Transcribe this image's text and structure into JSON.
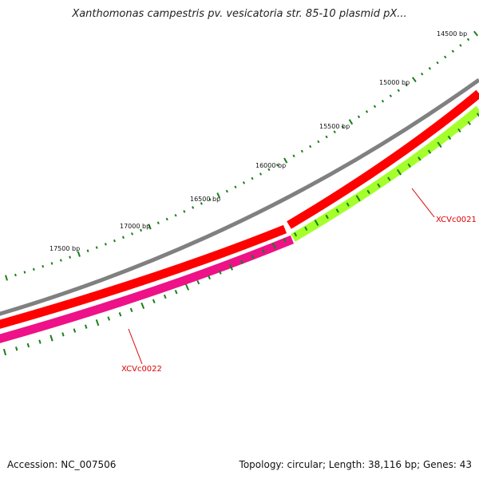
{
  "title": "Xanthomonas campestris pv. vesicatoria str. 85-10 plasmid pX...",
  "footer": {
    "accession": "Accession: NC_007506",
    "summary": "Topology: circular; Length: 38,116 bp; Genes: 43"
  },
  "ticks": {
    "labels": [
      "14500 bp",
      "15000 bp",
      "15500 bp",
      "16000 bp",
      "16500 bp",
      "17000 bp",
      "17500 bp"
    ],
    "color": "#1a7f1a"
  },
  "tracks": {
    "backbone_color": "#808080",
    "forward_color": "#ff0000",
    "reverse_magenta": "#ee1188",
    "reverse_lime": "#a4ff2a"
  },
  "genes": [
    {
      "name": "XCVc0021",
      "color": "#dd0000"
    },
    {
      "name": "XCVc0022",
      "color": "#dd0000"
    }
  ]
}
